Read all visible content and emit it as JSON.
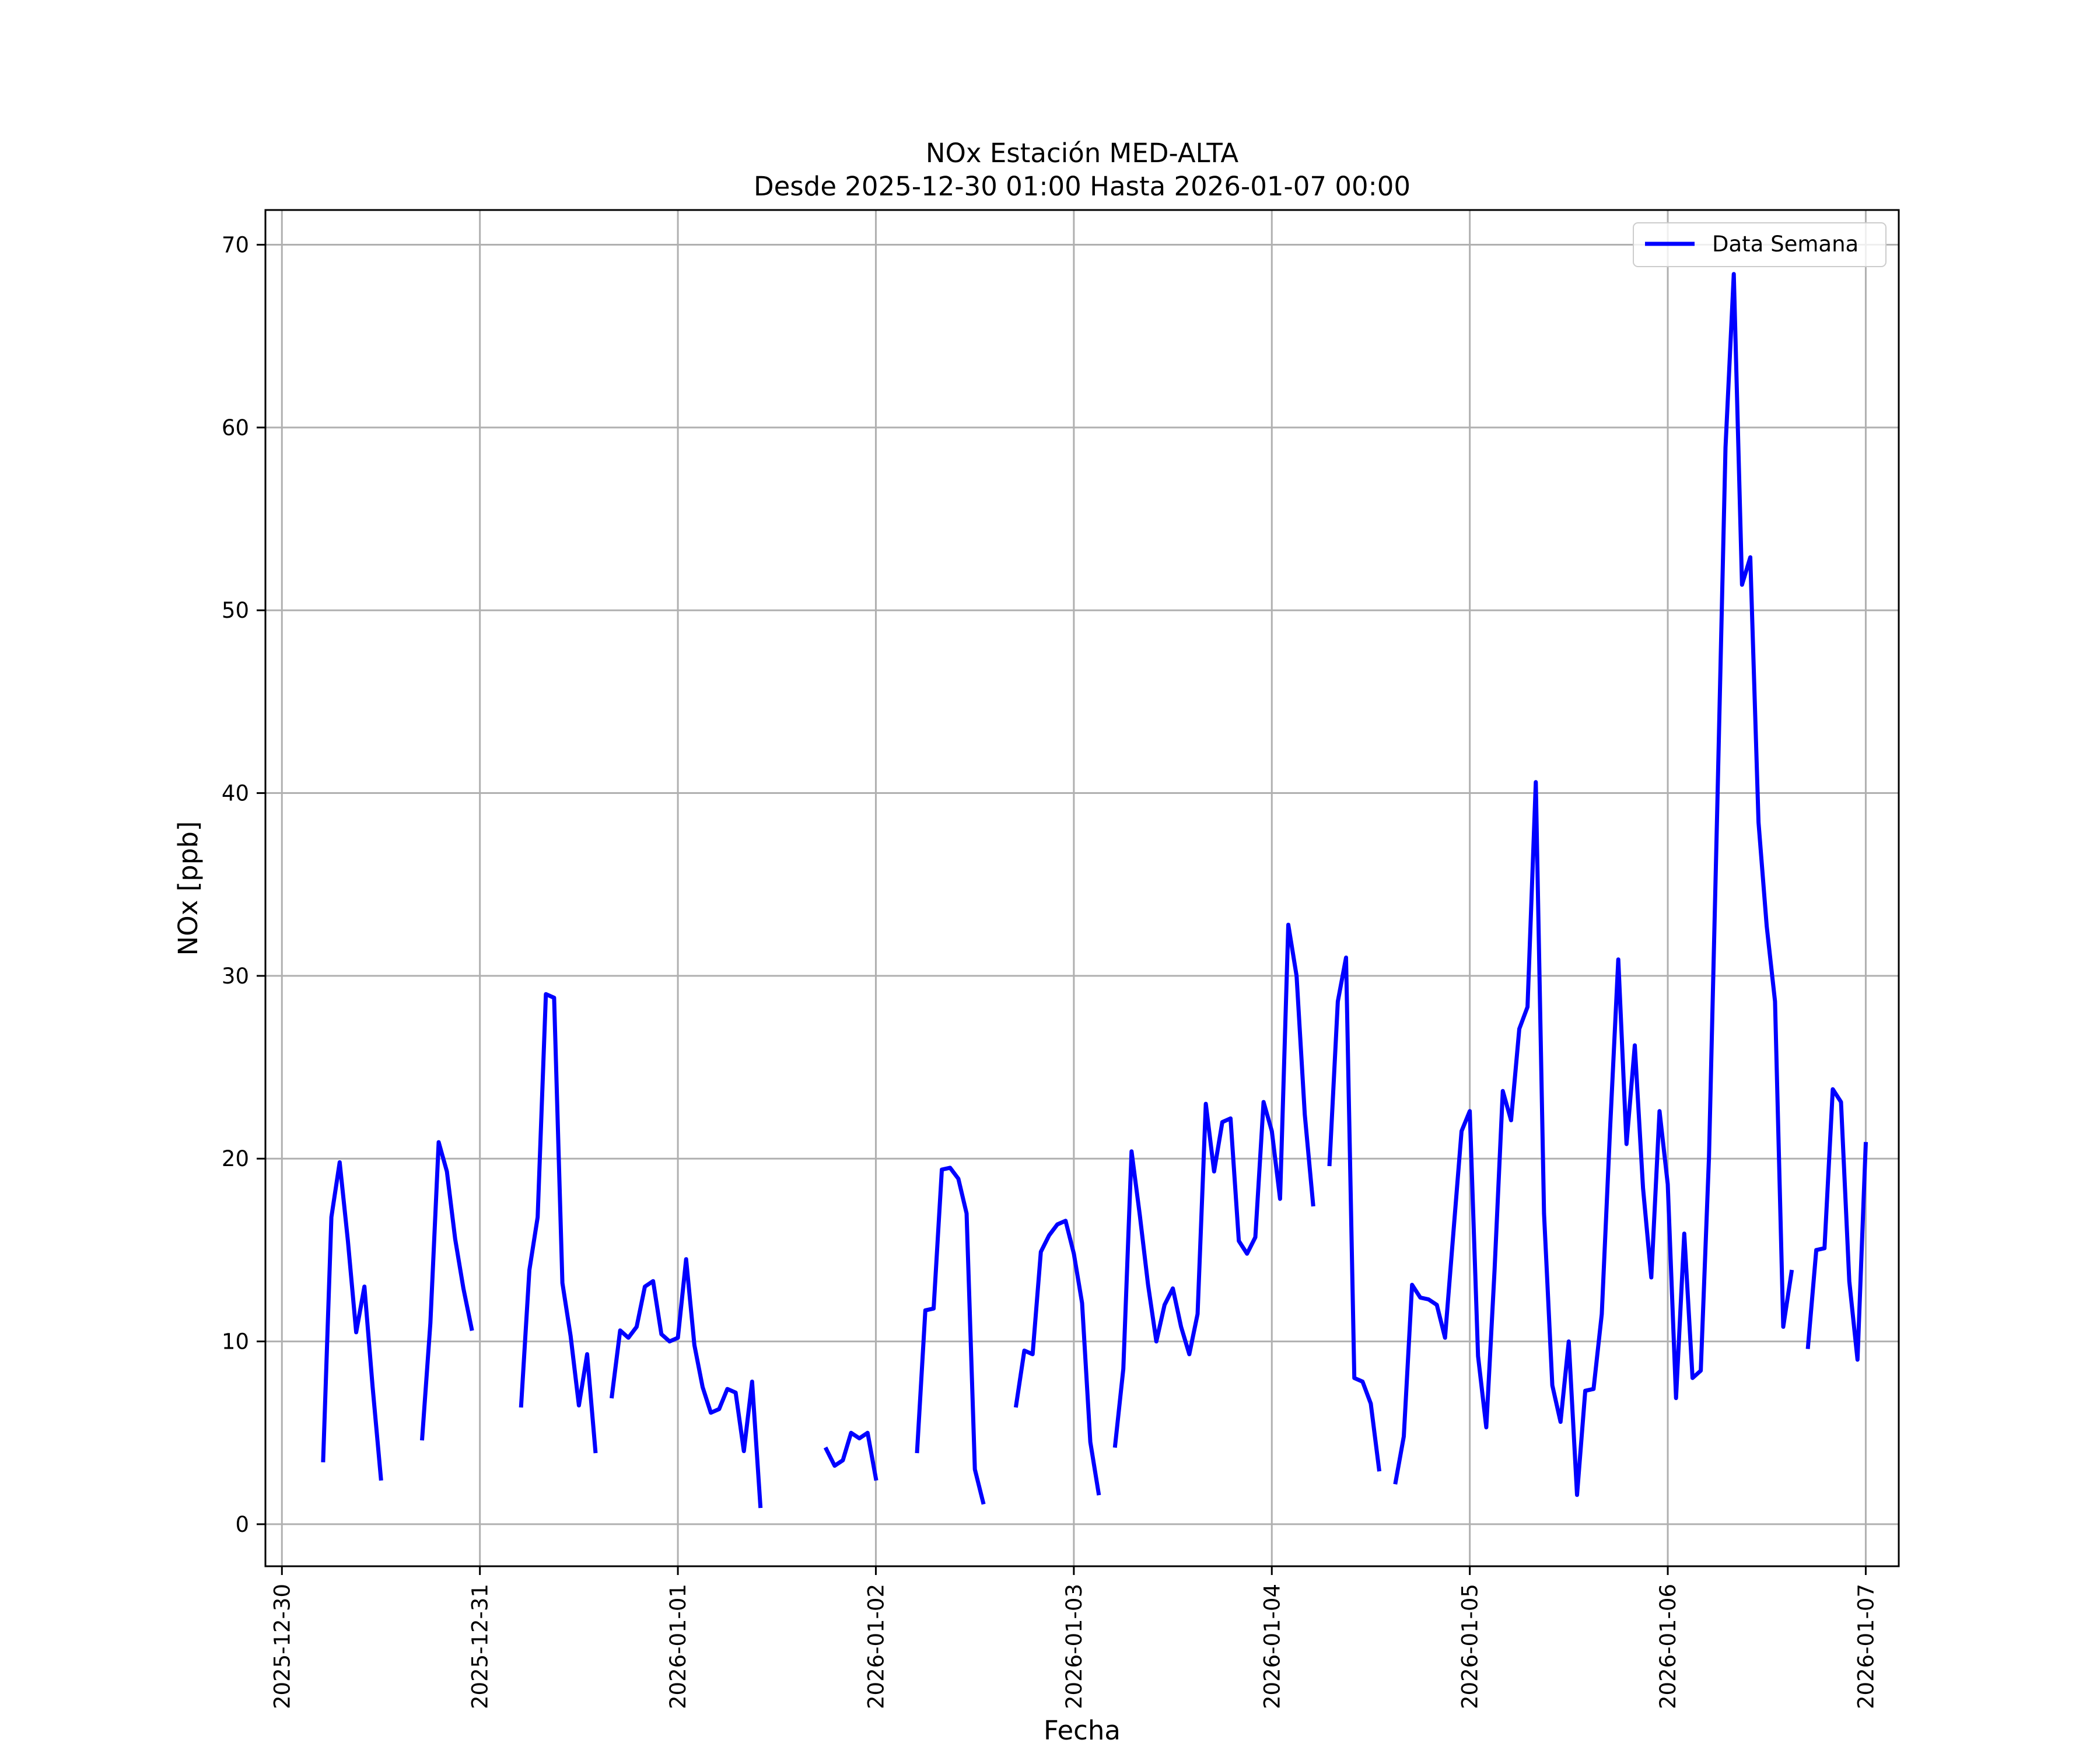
{
  "chart_data": {
    "type": "line",
    "title": "NOx Estación MED-ALTA",
    "subtitle": "Desde 2025-12-30 01:00 Hasta 2026-01-07 00:00",
    "xlabel": "Fecha",
    "ylabel": "NOx [ppb]",
    "xlim": [
      "2025-12-29T22:00",
      "2026-01-07T04:00"
    ],
    "ylim": [
      -2.3,
      71.9
    ],
    "yticks": [
      0,
      10,
      20,
      30,
      40,
      50,
      60,
      70
    ],
    "xticks": [
      "2025-12-30",
      "2025-12-31",
      "2026-01-01",
      "2026-01-02",
      "2026-01-03",
      "2026-01-04",
      "2026-01-05",
      "2026-01-06",
      "2026-01-07"
    ],
    "grid": true,
    "legend": {
      "position": "top-right"
    },
    "colors": {
      "line": "#0000ff",
      "grid": "#b0b0b0",
      "axes": "#000000"
    },
    "series": [
      {
        "name": "Data Semana",
        "segments": [
          [
            [
              "2025-12-30T05:00",
              3.5
            ],
            [
              "2025-12-30T06:00",
              16.8
            ],
            [
              "2025-12-30T07:00",
              19.8
            ],
            [
              "2025-12-30T08:00",
              15.5
            ],
            [
              "2025-12-30T09:00",
              10.5
            ],
            [
              "2025-12-30T10:00",
              13.0
            ],
            [
              "2025-12-30T11:00",
              7.5
            ],
            [
              "2025-12-30T12:00",
              2.5
            ]
          ],
          [
            [
              "2025-12-30T17:00",
              4.7
            ],
            [
              "2025-12-30T18:00",
              11.0
            ],
            [
              "2025-12-30T19:00",
              20.9
            ],
            [
              "2025-12-30T20:00",
              19.3
            ],
            [
              "2025-12-30T21:00",
              15.6
            ],
            [
              "2025-12-30T22:00",
              12.9
            ],
            [
              "2025-12-30T23:00",
              10.7
            ]
          ],
          [
            [
              "2025-12-31T05:00",
              6.5
            ],
            [
              "2025-12-31T06:00",
              13.9
            ],
            [
              "2025-12-31T07:00",
              16.8
            ],
            [
              "2025-12-31T08:00",
              29.0
            ],
            [
              "2025-12-31T09:00",
              28.8
            ],
            [
              "2025-12-31T10:00",
              13.2
            ],
            [
              "2025-12-31T11:00",
              10.3
            ],
            [
              "2025-12-31T12:00",
              6.5
            ],
            [
              "2025-12-31T13:00",
              9.3
            ],
            [
              "2025-12-31T14:00",
              4.0
            ]
          ],
          [
            [
              "2025-12-31T16:00",
              7.0
            ],
            [
              "2025-12-31T17:00",
              10.6
            ],
            [
              "2025-12-31T18:00",
              10.2
            ],
            [
              "2025-12-31T19:00",
              10.8
            ],
            [
              "2025-12-31T20:00",
              13.0
            ],
            [
              "2025-12-31T21:00",
              13.3
            ],
            [
              "2025-12-31T22:00",
              10.4
            ],
            [
              "2025-12-31T23:00",
              10.0
            ],
            [
              "2026-01-01T00:00",
              10.2
            ],
            [
              "2026-01-01T01:00",
              14.5
            ],
            [
              "2026-01-01T02:00",
              9.8
            ],
            [
              "2026-01-01T03:00",
              7.5
            ],
            [
              "2026-01-01T04:00",
              6.1
            ],
            [
              "2026-01-01T05:00",
              6.3
            ],
            [
              "2026-01-01T06:00",
              7.4
            ],
            [
              "2026-01-01T07:00",
              7.2
            ],
            [
              "2026-01-01T08:00",
              4.0
            ],
            [
              "2026-01-01T09:00",
              7.8
            ],
            [
              "2026-01-01T10:00",
              1.0
            ]
          ],
          [
            [
              "2026-01-01T18:00",
              4.1
            ],
            [
              "2026-01-01T19:00",
              3.2
            ],
            [
              "2026-01-01T20:00",
              3.5
            ],
            [
              "2026-01-01T21:00",
              5.0
            ],
            [
              "2026-01-01T22:00",
              4.7
            ],
            [
              "2026-01-01T23:00",
              5.0
            ],
            [
              "2026-01-02T00:00",
              2.5
            ]
          ],
          [
            [
              "2026-01-02T05:00",
              4.0
            ],
            [
              "2026-01-02T06:00",
              11.7
            ],
            [
              "2026-01-02T07:00",
              11.8
            ],
            [
              "2026-01-02T08:00",
              19.4
            ],
            [
              "2026-01-02T09:00",
              19.5
            ],
            [
              "2026-01-02T10:00",
              18.9
            ],
            [
              "2026-01-02T11:00",
              17.0
            ],
            [
              "2026-01-02T12:00",
              3.0
            ],
            [
              "2026-01-02T13:00",
              1.2
            ]
          ],
          [
            [
              "2026-01-02T17:00",
              6.5
            ],
            [
              "2026-01-02T18:00",
              9.5
            ],
            [
              "2026-01-02T19:00",
              9.3
            ],
            [
              "2026-01-02T20:00",
              14.9
            ],
            [
              "2026-01-02T21:00",
              15.8
            ],
            [
              "2026-01-02T22:00",
              16.4
            ],
            [
              "2026-01-02T23:00",
              16.6
            ],
            [
              "2026-01-03T00:00",
              14.8
            ],
            [
              "2026-01-03T01:00",
              12.1
            ],
            [
              "2026-01-03T02:00",
              4.5
            ],
            [
              "2026-01-03T03:00",
              1.7
            ]
          ],
          [
            [
              "2026-01-03T05:00",
              4.3
            ],
            [
              "2026-01-03T06:00",
              8.5
            ],
            [
              "2026-01-03T07:00",
              20.4
            ],
            [
              "2026-01-03T08:00",
              16.9
            ],
            [
              "2026-01-03T09:00",
              13.1
            ],
            [
              "2026-01-03T10:00",
              10.0
            ],
            [
              "2026-01-03T11:00",
              12.0
            ],
            [
              "2026-01-03T12:00",
              12.9
            ],
            [
              "2026-01-03T13:00",
              10.8
            ],
            [
              "2026-01-03T14:00",
              9.3
            ],
            [
              "2026-01-03T15:00",
              11.5
            ],
            [
              "2026-01-03T16:00",
              23.0
            ],
            [
              "2026-01-03T17:00",
              19.3
            ],
            [
              "2026-01-03T18:00",
              22.0
            ],
            [
              "2026-01-03T19:00",
              22.2
            ],
            [
              "2026-01-03T20:00",
              15.5
            ],
            [
              "2026-01-03T21:00",
              14.8
            ],
            [
              "2026-01-03T22:00",
              15.7
            ],
            [
              "2026-01-03T23:00",
              23.1
            ],
            [
              "2026-01-04T00:00",
              21.5
            ],
            [
              "2026-01-04T01:00",
              17.8
            ],
            [
              "2026-01-04T02:00",
              32.8
            ],
            [
              "2026-01-04T03:00",
              30.0
            ],
            [
              "2026-01-04T04:00",
              22.4
            ],
            [
              "2026-01-04T05:00",
              17.5
            ]
          ],
          [
            [
              "2026-01-04T07:00",
              19.7
            ],
            [
              "2026-01-04T08:00",
              28.6
            ],
            [
              "2026-01-04T09:00",
              31.0
            ],
            [
              "2026-01-04T10:00",
              8.0
            ],
            [
              "2026-01-04T11:00",
              7.8
            ],
            [
              "2026-01-04T12:00",
              6.6
            ],
            [
              "2026-01-04T13:00",
              3.0
            ]
          ],
          [
            [
              "2026-01-04T15:00",
              2.3
            ],
            [
              "2026-01-04T16:00",
              4.8
            ],
            [
              "2026-01-04T17:00",
              13.1
            ],
            [
              "2026-01-04T18:00",
              12.4
            ],
            [
              "2026-01-04T19:00",
              12.3
            ],
            [
              "2026-01-04T20:00",
              12.0
            ],
            [
              "2026-01-04T21:00",
              10.2
            ],
            [
              "2026-01-04T22:00",
              15.9
            ],
            [
              "2026-01-04T23:00",
              21.5
            ],
            [
              "2026-01-05T00:00",
              22.6
            ],
            [
              "2026-01-05T01:00",
              9.2
            ],
            [
              "2026-01-05T02:00",
              5.3
            ],
            [
              "2026-01-05T03:00",
              13.9
            ],
            [
              "2026-01-05T04:00",
              23.7
            ],
            [
              "2026-01-05T05:00",
              22.1
            ],
            [
              "2026-01-05T06:00",
              27.1
            ],
            [
              "2026-01-05T07:00",
              28.3
            ],
            [
              "2026-01-05T08:00",
              40.6
            ],
            [
              "2026-01-05T09:00",
              17.0
            ],
            [
              "2026-01-05T10:00",
              7.6
            ],
            [
              "2026-01-05T11:00",
              5.6
            ],
            [
              "2026-01-05T12:00",
              10.0
            ],
            [
              "2026-01-05T13:00",
              1.6
            ],
            [
              "2026-01-05T14:00",
              7.3
            ],
            [
              "2026-01-05T15:00",
              7.4
            ],
            [
              "2026-01-05T16:00",
              11.5
            ],
            [
              "2026-01-05T17:00",
              21.6
            ],
            [
              "2026-01-05T18:00",
              30.9
            ],
            [
              "2026-01-05T19:00",
              20.8
            ],
            [
              "2026-01-05T20:00",
              26.2
            ],
            [
              "2026-01-05T21:00",
              18.4
            ],
            [
              "2026-01-05T22:00",
              13.5
            ],
            [
              "2026-01-05T23:00",
              22.6
            ],
            [
              "2026-01-06T00:00",
              18.6
            ],
            [
              "2026-01-06T01:00",
              6.9
            ],
            [
              "2026-01-06T02:00",
              15.9
            ],
            [
              "2026-01-06T03:00",
              8.0
            ],
            [
              "2026-01-06T04:00",
              8.4
            ],
            [
              "2026-01-06T05:00",
              20.1
            ],
            [
              "2026-01-06T06:00",
              39.2
            ],
            [
              "2026-01-06T07:00",
              58.9
            ],
            [
              "2026-01-06T08:00",
              68.4
            ],
            [
              "2026-01-06T09:00",
              51.4
            ],
            [
              "2026-01-06T10:00",
              52.9
            ],
            [
              "2026-01-06T11:00",
              38.4
            ],
            [
              "2026-01-06T12:00",
              32.7
            ],
            [
              "2026-01-06T13:00",
              28.6
            ],
            [
              "2026-01-06T14:00",
              10.8
            ],
            [
              "2026-01-06T15:00",
              13.8
            ]
          ],
          [
            [
              "2026-01-06T17:00",
              9.7
            ],
            [
              "2026-01-06T18:00",
              15.0
            ],
            [
              "2026-01-06T19:00",
              15.1
            ],
            [
              "2026-01-06T20:00",
              23.8
            ],
            [
              "2026-01-06T21:00",
              23.1
            ],
            [
              "2026-01-06T22:00",
              13.3
            ],
            [
              "2026-01-06T23:00",
              9.0
            ],
            [
              "2026-01-07T00:00",
              20.8
            ]
          ]
        ]
      }
    ]
  }
}
